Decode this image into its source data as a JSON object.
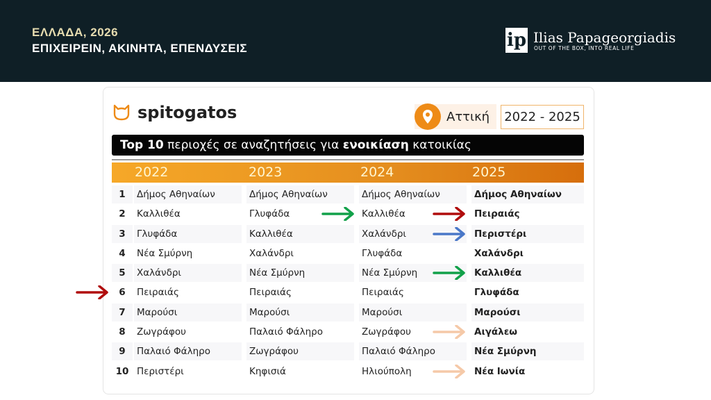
{
  "header": {
    "line1": "ΕΛΛΑΔΑ, 2026",
    "line2": "ΕΠΙΧΕΙΡΕΙΝ, ΑΚΙΝΗΤΑ, ΕΠΕΝΔΥΣΕΙΣ",
    "logo_mark": "ip",
    "logo_name": "Ilias Papageorgiadis",
    "logo_tagline": "OUT OF THE BOX, INTO REAL LIFE"
  },
  "card": {
    "brand": "spitogatos",
    "location": "Αττική",
    "years": "2022 - 2025",
    "title_pre": "Top 10",
    "title_mid": " περιοχές σε αναζητήσεις για ",
    "title_bold": "ενοικίαση",
    "title_post": " κατοικίας"
  },
  "colors": {
    "green": "#12a14a",
    "red": "#b00d0d",
    "blue": "#4a78c8",
    "peach": "#f5c9a8",
    "accent": "#ee8b17"
  },
  "table": {
    "columns": [
      "2022",
      "2023",
      "2024",
      "2025"
    ],
    "rows": [
      [
        "1",
        "Δήμος Αθηναίων",
        "Δήμος Αθηναίων",
        "Δήμος Αθηναίων",
        "Δήμος Αθηναίων"
      ],
      [
        "2",
        "Καλλιθέα",
        "Γλυφάδα",
        "Καλλιθέα",
        "Πειραιάς"
      ],
      [
        "3",
        "Γλυφάδα",
        "Καλλιθέα",
        "Χαλάνδρι",
        "Περιστέρι"
      ],
      [
        "4",
        "Νέα Σμύρνη",
        "Χαλάνδρι",
        "Γλυφάδα",
        "Χαλάνδρι"
      ],
      [
        "5",
        "Χαλάνδρι",
        "Νέα Σμύρνη",
        "Νέα Σμύρνη",
        "Καλλιθέα"
      ],
      [
        "6",
        "Πειραιάς",
        "Πειραιάς",
        "Πειραιάς",
        "Γλυφάδα"
      ],
      [
        "7",
        "Μαρούσι",
        "Μαρούσι",
        "Μαρούσι",
        "Μαρούσι"
      ],
      [
        "8",
        "Ζωγράφου",
        "Παλαιό Φάληρο",
        "Ζωγράφου",
        "Αιγάλεω"
      ],
      [
        "9",
        "Παλαιό Φάληρο",
        "Ζωγράφου",
        "Παλαιό Φάληρο",
        "Νέα Σμύρνη"
      ],
      [
        "10",
        "Περιστέρι",
        "Κηφισιά",
        "Ηλιούπολη",
        "Νέα Ιωνία"
      ]
    ]
  },
  "arrows": [
    {
      "row": 2,
      "gap": "2023-2024",
      "color": "green"
    },
    {
      "row": 2,
      "gap": "2024-2025",
      "color": "red"
    },
    {
      "row": 3,
      "gap": "2024-2025",
      "color": "blue"
    },
    {
      "row": 5,
      "gap": "2024-2025",
      "color": "green"
    },
    {
      "row": 6,
      "gap": "left",
      "color": "red"
    },
    {
      "row": 8,
      "gap": "2024-2025",
      "color": "peach"
    },
    {
      "row": 10,
      "gap": "2024-2025",
      "color": "peach"
    }
  ]
}
